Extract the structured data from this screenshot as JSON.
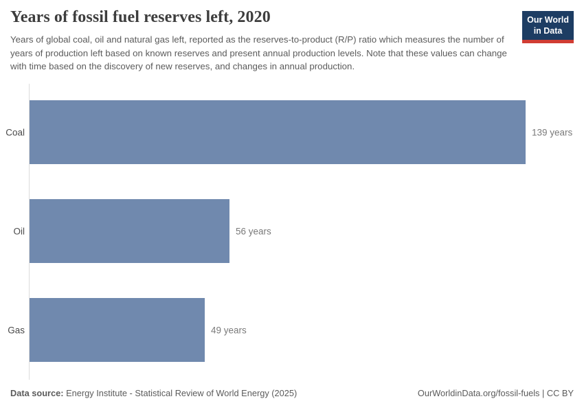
{
  "header": {
    "title": "Years of fossil fuel reserves left, 2020",
    "subtitle": "Years of global coal, oil and natural gas left, reported as the reserves-to-product (R/P) ratio which measures the number of years of production left based on known reserves and present annual production levels. Note that these values can change with time based on the discovery of new reserves, and changes in annual production.",
    "logo": {
      "line1": "Our World",
      "line2": "in Data"
    }
  },
  "chart_data": {
    "type": "bar",
    "orientation": "horizontal",
    "title": "Years of fossil fuel reserves left, 2020",
    "categories": [
      "Coal",
      "Oil",
      "Gas"
    ],
    "values": [
      139,
      56,
      49
    ],
    "value_labels": [
      "139 years",
      "56 years",
      "49 years"
    ],
    "unit": "years",
    "xlabel": "",
    "ylabel": "",
    "xlim": [
      0,
      139
    ],
    "grid": false,
    "legend": false
  },
  "footer": {
    "datasource_label": "Data source:",
    "datasource_value": " Energy Institute - Statistical Review of World Energy (2025)",
    "link": "OurWorldinData.org/fossil-fuels",
    "separator": " | ",
    "license": "CC BY"
  },
  "theme": {
    "bar_color": "#7089ae",
    "axis_color": "#dcdcdc",
    "title_color": "#3d3d3d",
    "subtitle_color": "#5b5b5b",
    "entity_label_color": "#4a4a4a",
    "value_label_color": "#7a7a7a",
    "footer_color": "#5b5b5b",
    "logo_bg": "#1d3d63",
    "logo_accent": "#d13d33"
  }
}
